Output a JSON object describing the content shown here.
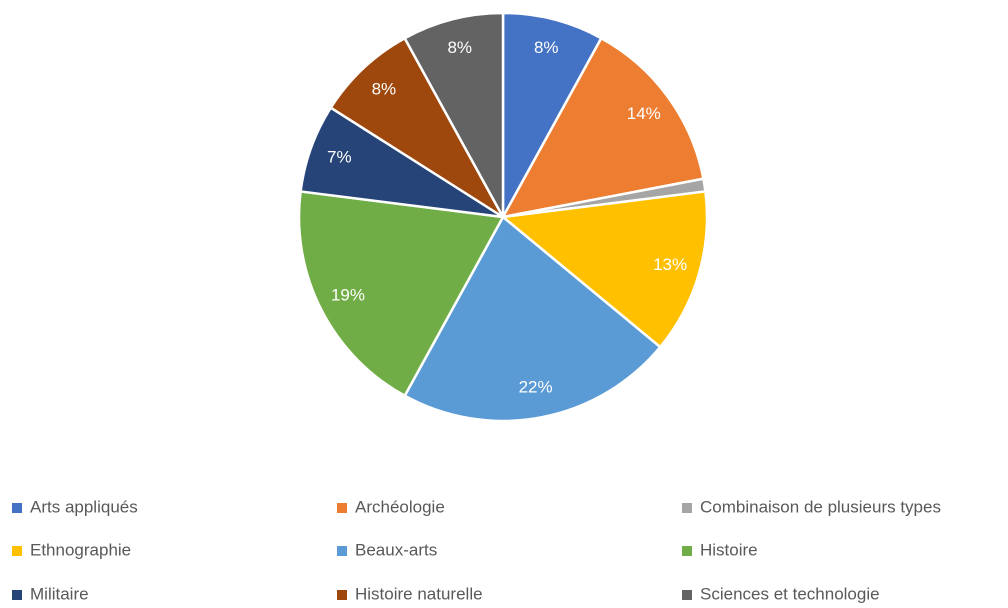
{
  "chart_data": {
    "type": "pie",
    "categories": [
      "Arts appliqués",
      "Archéologie",
      "Combinaison de plusieurs types",
      "Ethnographie",
      "Beaux-arts",
      "Histoire",
      "Militaire",
      "Histoire naturelle",
      "Sciences et technologie"
    ],
    "values": [
      8,
      14,
      1,
      13,
      22,
      19,
      7,
      8,
      8
    ],
    "value_labels": [
      "8%",
      "14%",
      null,
      "13%",
      "22%",
      "19%",
      "7%",
      "8%",
      "8%"
    ],
    "colors": [
      "#4472c4",
      "#ed7d31",
      "#a5a5a5",
      "#ffc000",
      "#5b9bd5",
      "#70ad47",
      "#264478",
      "#9e480e",
      "#636363"
    ],
    "legend": "bottom"
  }
}
